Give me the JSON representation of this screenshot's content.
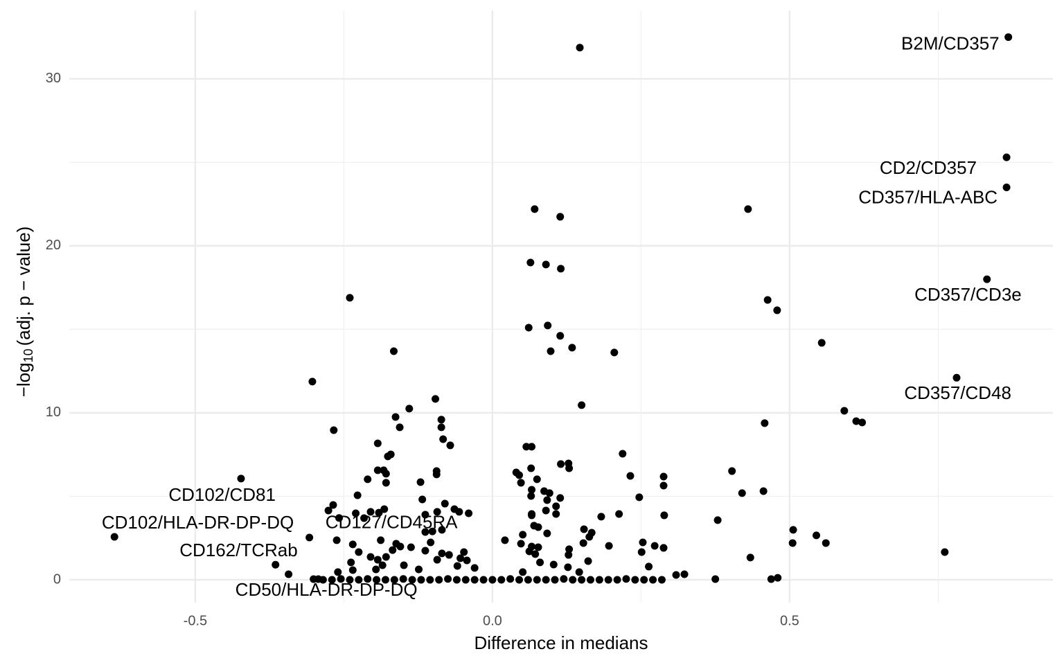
{
  "chart_data": {
    "type": "scatter",
    "x_label": "Difference in medians",
    "y_label": [
      "−log",
      "10",
      "(adj. p − value)"
    ],
    "xlim": [
      -0.712,
      0.943
    ],
    "ylim": [
      -1.37,
      34.1
    ],
    "xticks": [
      -0.5,
      {
        "value": 0,
        "label": "0.0"
      },
      0.5
    ],
    "yticks": [
      0,
      10,
      20,
      30
    ],
    "x_minor_grid": [
      -0.25,
      0.25,
      0.75
    ],
    "y_minor_grid": [
      5,
      15,
      25
    ],
    "grid": true,
    "color": "#000000",
    "series": [
      {
        "x": [
          0.147,
          0.071,
          0.114,
          0.43,
          0.064,
          0.09,
          0.115,
          -0.24,
          0.463,
          0.479,
          0.061,
          0.093,
          0.114,
          0.554,
          0.134,
          0.098,
          -0.166,
          0.205,
          -0.303,
          -0.096,
          0.15,
          -0.14,
          0.592,
          -0.163,
          -0.086,
          0.612,
          0.622,
          0.458,
          -0.086,
          -0.156,
          -0.267,
          -0.083,
          -0.193,
          -0.071,
          0.057,
          0.066,
          0.219,
          -0.171,
          -0.176,
          0.115,
          0.128,
          0.129,
          0.065,
          -0.193,
          -0.183,
          -0.094,
          0.403,
          0.04,
          -0.179,
          0.045,
          -0.094,
          0.232,
          0.288,
          -0.21,
          0.075,
          -0.121,
          -0.179,
          0.048,
          0.288,
          0.066,
          0.087,
          0.456,
          0.42,
          -0.227,
          0.096,
          0.065,
          0.247,
          0.114,
          -0.118,
          0.092,
          -0.08,
          -0.268,
          0.107,
          -0.276,
          -0.182,
          -0.064,
          0.066,
          0.09,
          -0.093,
          -0.205,
          -0.23,
          -0.191,
          -0.056,
          -0.04,
          0.289,
          0.213,
          -0.113,
          0.066,
          0.107,
          0.183,
          0.379,
          -0.216,
          0.154,
          0.167,
          0.506,
          0.07,
          0.077,
          0.092,
          -0.113,
          -0.101,
          -0.085,
          0.051,
          0.545,
          0.163,
          -0.308,
          -0.188,
          -0.262,
          0.021,
          0.253,
          0.505,
          0.561,
          -0.162,
          -0.104,
          0.048,
          0.153,
          -0.235,
          0.273,
          0.196,
          -0.155,
          0.066,
          0.077,
          0.288,
          -0.168,
          -0.137,
          0.129,
          0.062,
          0.761,
          0.251,
          -0.113,
          0.072,
          -0.225,
          0.128,
          0.434,
          -0.179,
          -0.085,
          -0.073,
          -0.048,
          -0.054,
          -0.205,
          -0.093,
          -0.193,
          -0.043,
          0.161,
          -0.238,
          0.08,
          0.103,
          0.263,
          -0.185,
          -0.149,
          -0.124,
          -0.059,
          -0.03,
          -0.196,
          0.127,
          -0.235,
          -0.26,
          0.051,
          0.146,
          0.309,
          0.323,
          0.48,
          0.469,
          0.375,
          -0.301,
          -0.293,
          -0.285,
          -0.27,
          -0.255,
          -0.24,
          -0.225,
          -0.21,
          -0.195,
          -0.18,
          -0.165,
          -0.15,
          -0.135,
          -0.12,
          -0.105,
          -0.09,
          -0.075,
          -0.06,
          -0.045,
          -0.03,
          -0.015,
          0.0,
          0.015,
          0.03,
          0.045,
          0.06,
          0.075,
          0.09,
          0.105,
          0.12,
          0.135,
          0.15,
          0.165,
          0.18,
          0.195,
          0.21,
          0.225,
          0.24,
          0.255,
          0.27,
          0.285
        ],
        "values": [
          31.87,
          22.2,
          21.74,
          22.2,
          19.0,
          18.88,
          18.63,
          16.89,
          16.76,
          16.14,
          15.1,
          15.23,
          14.61,
          14.19,
          13.9,
          13.69,
          13.69,
          13.61,
          11.87,
          10.83,
          10.46,
          10.25,
          10.12,
          9.75,
          9.59,
          9.5,
          9.42,
          9.38,
          9.13,
          9.13,
          8.96,
          8.42,
          8.17,
          8.05,
          7.97,
          7.97,
          7.55,
          7.51,
          7.39,
          6.93,
          6.97,
          6.68,
          6.68,
          6.56,
          6.56,
          6.51,
          6.51,
          6.43,
          6.35,
          6.27,
          6.31,
          6.22,
          6.18,
          6.02,
          6.02,
          5.85,
          5.81,
          5.81,
          5.64,
          5.39,
          5.31,
          5.31,
          5.19,
          5.06,
          5.19,
          5.02,
          4.94,
          4.9,
          4.81,
          4.77,
          4.56,
          4.48,
          4.4,
          4.15,
          4.23,
          4.23,
          3.94,
          4.15,
          4.07,
          4.07,
          3.98,
          4.02,
          4.07,
          3.98,
          3.86,
          3.94,
          3.9,
          3.86,
          3.94,
          3.78,
          3.57,
          3.69,
          3.03,
          2.82,
          2.99,
          3.24,
          3.15,
          2.78,
          2.86,
          2.9,
          2.99,
          2.7,
          2.66,
          2.57,
          2.53,
          2.37,
          2.37,
          2.37,
          2.24,
          2.2,
          2.2,
          2.16,
          2.24,
          2.16,
          2.2,
          2.12,
          2.03,
          2.03,
          1.99,
          1.99,
          1.95,
          1.91,
          1.78,
          1.95,
          1.83,
          1.7,
          1.66,
          1.66,
          1.74,
          1.54,
          1.66,
          1.49,
          1.33,
          1.37,
          1.58,
          1.49,
          1.66,
          1.29,
          1.37,
          1.2,
          1.2,
          1.16,
          1.12,
          1.04,
          1.04,
          0.91,
          0.79,
          0.87,
          0.87,
          0.62,
          0.83,
          0.71,
          0.62,
          0.75,
          0.58,
          0.46,
          0.46,
          0.46,
          0.29,
          0.33,
          0.12,
          0.04,
          0.04,
          0.04,
          0.04,
          0,
          0,
          0.05,
          0,
          0,
          0.05,
          0,
          0,
          0,
          0.05,
          0,
          0,
          0,
          0,
          0.05,
          0,
          0,
          0,
          0,
          0,
          0,
          0.05,
          0,
          0,
          0,
          0,
          0,
          0.05,
          0,
          0,
          0,
          0,
          0,
          0,
          0.05,
          0,
          0,
          0,
          0
        ]
      }
    ],
    "annotations": [
      {
        "text": "B2M/CD357",
        "x": 0.868,
        "y": 32.5
      },
      {
        "text": "CD2/CD357",
        "x": 0.865,
        "y": 25.3
      },
      {
        "text": "CD357/HLA-ABC",
        "x": 0.865,
        "y": 23.5
      },
      {
        "text": "CD357/CD3e",
        "x": 0.832,
        "y": 18.0
      },
      {
        "text": "CD357/CD48",
        "x": 0.781,
        "y": 12.1
      },
      {
        "text": "CD102/CD81",
        "x": -0.423,
        "y": 6.06
      },
      {
        "text": "CD102/HLA-DR-DP-DQ",
        "x": -0.636,
        "y": 2.57
      },
      {
        "text": "CD127/CD45RA",
        "x": -0.258,
        "y": 3.7
      },
      {
        "text": "CD162/TCRab",
        "x": -0.365,
        "y": 0.9
      },
      {
        "text": "CD50/HLA-DR-DP-DQ",
        "x": -0.343,
        "y": 0.33
      }
    ]
  }
}
